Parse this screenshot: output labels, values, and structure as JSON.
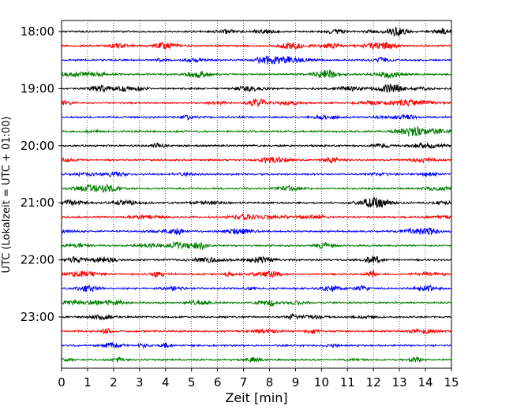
{
  "chart_data": {
    "type": "line",
    "title": "",
    "xlabel": "Zeit  [min]",
    "ylabel": "UTC (Lokalzeit = UTC + 01:00)",
    "xlim": [
      0,
      15
    ],
    "x_ticks": [
      0,
      1,
      2,
      3,
      4,
      5,
      6,
      7,
      8,
      9,
      10,
      11,
      12,
      13,
      14,
      15
    ],
    "y_tick_labels": [
      "18:00",
      "19:00",
      "20:00",
      "21:00",
      "22:00",
      "23:00"
    ],
    "grid": "vertical dotted",
    "legend": "none",
    "trace_interval_minutes": 15,
    "trace_colors": [
      "#000000",
      "#ff0000",
      "#0000ff",
      "#007f00"
    ],
    "traces": [
      {
        "start": "18:00",
        "color": "#000000"
      },
      {
        "start": "18:15",
        "color": "#ff0000"
      },
      {
        "start": "18:30",
        "color": "#0000ff"
      },
      {
        "start": "18:45",
        "color": "#007f00"
      },
      {
        "start": "19:00",
        "color": "#000000"
      },
      {
        "start": "19:15",
        "color": "#ff0000"
      },
      {
        "start": "19:30",
        "color": "#0000ff"
      },
      {
        "start": "19:45",
        "color": "#007f00"
      },
      {
        "start": "20:00",
        "color": "#000000"
      },
      {
        "start": "20:15",
        "color": "#ff0000"
      },
      {
        "start": "20:30",
        "color": "#0000ff"
      },
      {
        "start": "20:45",
        "color": "#007f00"
      },
      {
        "start": "21:00",
        "color": "#000000"
      },
      {
        "start": "21:15",
        "color": "#ff0000"
      },
      {
        "start": "21:30",
        "color": "#0000ff"
      },
      {
        "start": "21:45",
        "color": "#007f00"
      },
      {
        "start": "22:00",
        "color": "#000000"
      },
      {
        "start": "22:15",
        "color": "#ff0000"
      },
      {
        "start": "22:30",
        "color": "#0000ff"
      },
      {
        "start": "22:45",
        "color": "#007f00"
      },
      {
        "start": "23:00",
        "color": "#000000"
      },
      {
        "start": "23:15",
        "color": "#ff0000"
      },
      {
        "start": "23:30",
        "color": "#0000ff"
      },
      {
        "start": "23:45",
        "color": "#007f00"
      }
    ]
  }
}
